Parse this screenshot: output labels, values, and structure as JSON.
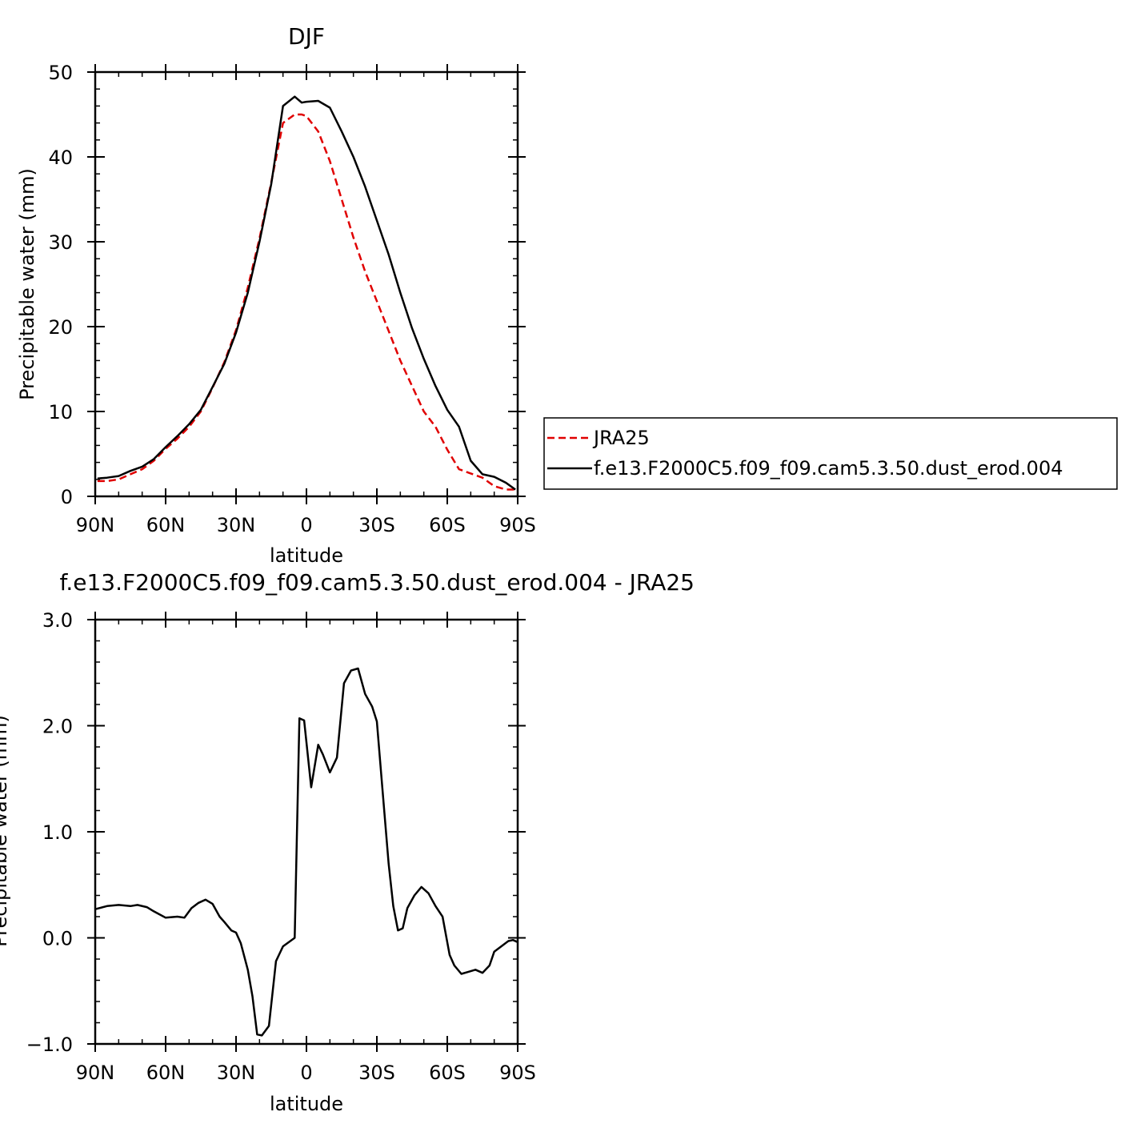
{
  "chart_data": [
    {
      "type": "line",
      "title": "DJF",
      "xlabel": "latitude",
      "ylabel": "Precipitable water (mm)",
      "xlim": [
        90,
        -90
      ],
      "ylim": [
        0,
        50
      ],
      "x_ticks": [
        90,
        60,
        30,
        0,
        -30,
        -60,
        -90
      ],
      "x_tick_labels": [
        "90N",
        "60N",
        "30N",
        "0",
        "30S",
        "60S",
        "90S"
      ],
      "y_ticks": [
        0,
        10,
        20,
        30,
        40,
        50
      ],
      "y_tick_labels": [
        "0",
        "10",
        "20",
        "30",
        "40",
        "50"
      ],
      "legend": "right",
      "series": [
        {
          "name": "JRA25",
          "color": "#e00000",
          "dash": "dashed",
          "x": [
            89,
            85,
            80,
            75,
            70,
            65,
            60,
            55,
            50,
            45,
            40,
            35,
            30,
            25,
            20,
            15,
            10,
            5,
            2,
            0,
            -5,
            -10,
            -15,
            -20,
            -25,
            -30,
            -35,
            -40,
            -45,
            -50,
            -55,
            -60,
            -65,
            -70,
            -75,
            -80,
            -85,
            -89
          ],
          "y": [
            1.8,
            1.8,
            2.0,
            2.6,
            3.2,
            4.2,
            5.6,
            6.8,
            8.2,
            10.0,
            12.8,
            15.8,
            19.6,
            24.6,
            30.4,
            37.0,
            44.0,
            45.0,
            45.0,
            44.8,
            43.0,
            39.5,
            35.0,
            30.5,
            26.5,
            23.0,
            19.5,
            16.0,
            13.0,
            10.0,
            8.2,
            5.5,
            3.2,
            2.7,
            2.2,
            1.2,
            0.8,
            0.8
          ]
        },
        {
          "name": "f.e13.F2000C5.f09_f09.cam5.3.50.dust_erod.004",
          "color": "#000000",
          "dash": "solid",
          "x": [
            89,
            85,
            80,
            75,
            70,
            65,
            60,
            55,
            50,
            45,
            40,
            35,
            30,
            25,
            20,
            15,
            10,
            5,
            2,
            0,
            -5,
            -10,
            -15,
            -20,
            -25,
            -30,
            -35,
            -40,
            -45,
            -50,
            -55,
            -60,
            -65,
            -70,
            -75,
            -80,
            -85,
            -89
          ],
          "y": [
            2.1,
            2.2,
            2.4,
            3.0,
            3.5,
            4.4,
            5.8,
            7.1,
            8.5,
            10.2,
            12.9,
            15.6,
            19.3,
            24.0,
            30.0,
            36.8,
            46.0,
            47.1,
            46.4,
            46.5,
            46.6,
            45.8,
            43.0,
            40.0,
            36.5,
            32.5,
            28.5,
            24.0,
            19.8,
            16.2,
            13.0,
            10.2,
            8.2,
            4.2,
            2.6,
            2.3,
            1.6,
            0.8
          ]
        }
      ]
    },
    {
      "type": "line",
      "title": "f.e13.F2000C5.f09_f09.cam5.3.50.dust_erod.004 - JRA25",
      "xlabel": "latitude",
      "ylabel": "Precipitable water (mm)",
      "xlim": [
        90,
        -90
      ],
      "ylim": [
        -1.0,
        3.0
      ],
      "x_ticks": [
        90,
        60,
        30,
        0,
        -30,
        -60,
        -90
      ],
      "x_tick_labels": [
        "90N",
        "60N",
        "30N",
        "0",
        "30S",
        "60S",
        "90S"
      ],
      "y_ticks": [
        -1.0,
        0.0,
        1.0,
        2.0,
        3.0
      ],
      "y_tick_labels": [
        "−1.0",
        "0.0",
        "1.0",
        "2.0",
        "3.0"
      ],
      "series": [
        {
          "color": "#000000",
          "dash": "solid",
          "x": [
            90,
            85,
            80,
            75,
            72,
            68,
            65,
            60,
            55,
            52,
            49,
            46,
            43,
            40,
            37,
            35,
            32,
            30,
            28,
            25,
            23,
            21,
            19,
            16,
            13,
            10,
            5,
            3,
            1,
            -2,
            -5,
            -7,
            -10,
            -13,
            -16,
            -19,
            -22,
            -25,
            -28,
            -30,
            -32,
            -35,
            -37,
            -39,
            -41,
            -43,
            -46,
            -49,
            -52,
            -55,
            -58,
            -61,
            -63,
            -66,
            -69,
            -72,
            -75,
            -78,
            -80,
            -83,
            -86,
            -88,
            -90
          ],
          "y": [
            0.27,
            0.3,
            0.31,
            0.3,
            0.31,
            0.29,
            0.25,
            0.19,
            0.2,
            0.19,
            0.28,
            0.33,
            0.36,
            0.32,
            0.2,
            0.15,
            0.07,
            0.05,
            -0.05,
            -0.3,
            -0.55,
            -0.91,
            -0.92,
            -0.83,
            -0.22,
            -0.08,
            0.0,
            2.07,
            2.05,
            1.42,
            1.82,
            1.73,
            1.56,
            1.7,
            2.4,
            2.52,
            2.54,
            2.3,
            2.18,
            2.04,
            1.5,
            0.7,
            0.3,
            0.07,
            0.09,
            0.28,
            0.4,
            0.48,
            0.42,
            0.3,
            0.2,
            -0.16,
            -0.26,
            -0.34,
            -0.32,
            -0.3,
            -0.33,
            -0.26,
            -0.13,
            -0.08,
            -0.03,
            -0.02,
            -0.04
          ]
        }
      ]
    }
  ]
}
